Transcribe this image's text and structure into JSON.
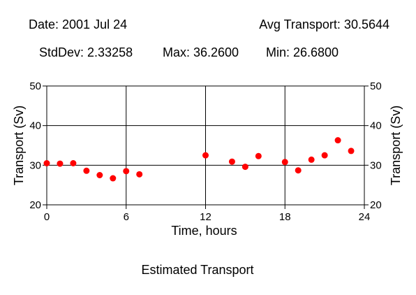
{
  "header": {
    "date": "Date: 2001 Jul 24",
    "avg": "Avg Transport: 30.5644",
    "stddev": "StdDev: 2.33258",
    "max": "Max: 36.2600",
    "min": "Min: 26.6800"
  },
  "caption": "Estimated Transport",
  "chart_data": {
    "type": "scatter",
    "title": "Estimated Transport",
    "xlabel": "Time, hours",
    "ylabel": "Transport (Sv)",
    "xlim": [
      0,
      24
    ],
    "ylim": [
      20,
      50
    ],
    "xticks": [
      0,
      6,
      12,
      18,
      24
    ],
    "yticks": [
      20,
      30,
      40,
      50
    ],
    "grid": true,
    "marker_color": "#ff0000",
    "x": [
      0,
      1,
      2,
      3,
      4,
      5,
      6,
      7,
      12,
      14,
      15,
      16,
      18,
      19,
      20,
      21,
      22,
      23
    ],
    "y": [
      30.5,
      30.4,
      30.5,
      28.6,
      27.5,
      26.7,
      28.5,
      27.7,
      32.5,
      30.9,
      29.6,
      32.3,
      30.8,
      28.7,
      31.4,
      32.5,
      36.3,
      33.6
    ]
  }
}
